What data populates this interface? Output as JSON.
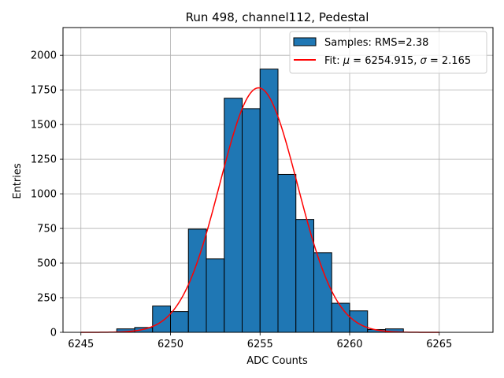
{
  "chart_data": {
    "type": "bar",
    "title": "Run 498, channel112, Pedestal",
    "xlabel": "ADC Counts",
    "ylabel": "Entries",
    "xlim": [
      6244,
      6268
    ],
    "ylim": [
      0,
      2200
    ],
    "xticks": [
      6245,
      6250,
      6255,
      6260,
      6265
    ],
    "yticks": [
      0,
      250,
      500,
      750,
      1000,
      1250,
      1500,
      1750,
      2000
    ],
    "grid": true,
    "legend_position": "top-right",
    "colors": {
      "bars": "#1f77b4",
      "bar_edge": "#000000",
      "fit": "#ff0000",
      "grid": "#b0b0b0"
    },
    "histogram": {
      "name": "Samples: RMS=2.38",
      "bin_edges": [
        6247,
        6248,
        6249,
        6250,
        6251,
        6252,
        6253,
        6254,
        6255,
        6256,
        6257,
        6258,
        6259,
        6260,
        6261,
        6262,
        6263
      ],
      "counts": [
        25,
        35,
        190,
        150,
        745,
        530,
        1690,
        1615,
        1900,
        1140,
        815,
        575,
        210,
        155,
        20,
        25
      ]
    },
    "fit": {
      "name": "Fit: μ = 6254.915, σ = 2.165",
      "name_parts": [
        "Fit: ",
        "μ",
        " = 6254.915, ",
        "σ",
        " = 2.165"
      ],
      "mu": 6254.915,
      "sigma": 2.165,
      "amplitude": 1765,
      "x_range": [
        6245,
        6265
      ]
    }
  }
}
